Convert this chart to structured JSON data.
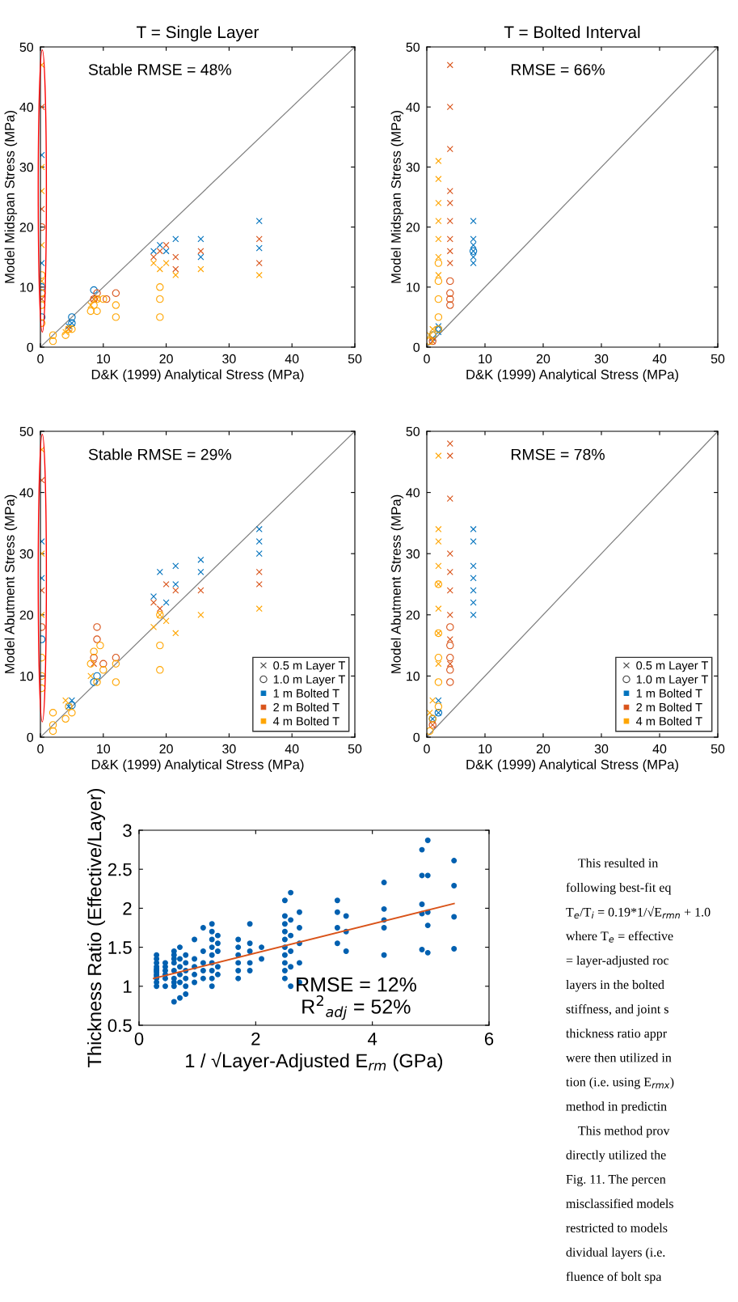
{
  "chart_data": [
    {
      "type": "scatter",
      "title": "T = Single Layer",
      "xlabel": "D&K (1999) Analytical Stress (MPa)",
      "ylabel": "Model Midspan Stress (MPa)",
      "xlim": [
        0,
        50
      ],
      "ylim": [
        0,
        50
      ],
      "xticks": [
        0,
        10,
        20,
        30,
        40,
        50
      ],
      "yticks": [
        0,
        10,
        20,
        30,
        40,
        50
      ],
      "legend": false,
      "annotations": [
        "Stable RMSE = 48%"
      ],
      "series": [
        {
          "type": "line",
          "color": "#808080",
          "x": [
            0,
            50
          ],
          "values": [
            0,
            50
          ]
        },
        {
          "marker": "cross",
          "color": "#0072bd",
          "x": [
            0.2,
            0.2,
            4.5,
            5,
            18,
            19,
            20,
            21.5,
            25.5,
            25.5,
            34.8,
            34.8
          ],
          "values": [
            14,
            32,
            3.5,
            4,
            16,
            17,
            16,
            18,
            18,
            15,
            21,
            16.5
          ]
        },
        {
          "marker": "cross",
          "color": "#d95319",
          "x": [
            0.2,
            0.2,
            0.2,
            4.5,
            8.5,
            18,
            19,
            20,
            21.5,
            21.5,
            25.5,
            34.8,
            34.8
          ],
          "values": [
            40,
            23,
            8,
            3,
            8,
            15,
            16,
            17,
            13,
            15,
            16,
            14,
            18
          ]
        },
        {
          "marker": "cross",
          "color": "#ffa500",
          "x": [
            0.2,
            0.2,
            0.2,
            0.2,
            0.2,
            4,
            8,
            9,
            18,
            19,
            20,
            21.5,
            25.5,
            34.8
          ],
          "values": [
            47,
            30,
            26,
            17,
            11,
            2.5,
            7,
            8,
            14,
            13,
            14,
            12,
            13,
            12
          ]
        },
        {
          "marker": "circle",
          "color": "#0072bd",
          "x": [
            0.2,
            0.2,
            5,
            5,
            8.5
          ],
          "values": [
            10,
            5,
            4,
            5,
            9.5
          ]
        },
        {
          "marker": "circle",
          "color": "#d95319",
          "x": [
            0.2,
            0.2,
            8.5,
            9,
            10.5,
            12
          ],
          "values": [
            20,
            9,
            8,
            9,
            8,
            9
          ]
        },
        {
          "marker": "circle",
          "color": "#ffa500",
          "x": [
            0.2,
            0.2,
            0.2,
            0.2,
            2,
            2,
            4,
            4.5,
            5,
            8,
            8.5,
            9,
            9,
            10,
            12,
            12,
            19,
            19,
            19
          ],
          "values": [
            12,
            9,
            7,
            4,
            1,
            2,
            2,
            3,
            3,
            6,
            7,
            8,
            6,
            8,
            5,
            7,
            5,
            8,
            10
          ]
        }
      ]
    },
    {
      "type": "scatter",
      "title": "T = Bolted Interval",
      "xlabel": "D&K (1999) Analytical Stress (MPa)",
      "ylabel": "Model Midspan Stress (MPa)",
      "xlim": [
        0,
        50
      ],
      "ylim": [
        0,
        50
      ],
      "xticks": [
        0,
        10,
        20,
        30,
        40,
        50
      ],
      "yticks": [
        0,
        10,
        20,
        30,
        40,
        50
      ],
      "legend": false,
      "annotations": [
        "RMSE = 66%"
      ],
      "series": [
        {
          "type": "line",
          "color": "#808080",
          "x": [
            0,
            50
          ],
          "values": [
            0,
            50
          ]
        },
        {
          "marker": "cross",
          "color": "#0072bd",
          "x": [
            1,
            2,
            2,
            8,
            8,
            8,
            8,
            8,
            8
          ],
          "values": [
            1.5,
            2.5,
            3.5,
            14,
            15,
            16,
            17,
            18,
            21
          ]
        },
        {
          "marker": "cross",
          "color": "#d95319",
          "x": [
            1,
            4,
            4,
            4,
            4,
            4,
            4,
            4,
            4,
            4
          ],
          "values": [
            1,
            14,
            16,
            18,
            21,
            24,
            26,
            33,
            40,
            47
          ]
        },
        {
          "marker": "cross",
          "color": "#ffa500",
          "x": [
            0.5,
            1,
            2,
            2,
            2,
            2,
            2,
            2,
            2
          ],
          "values": [
            2,
            3,
            12,
            15,
            18,
            21,
            24,
            28,
            31
          ]
        },
        {
          "marker": "circle",
          "color": "#0072bd",
          "x": [
            1,
            2,
            8
          ],
          "values": [
            2,
            3,
            16
          ]
        },
        {
          "marker": "circle",
          "color": "#d95319",
          "x": [
            1,
            4,
            4,
            4,
            4
          ],
          "values": [
            1,
            7,
            8,
            9,
            11
          ]
        },
        {
          "marker": "circle",
          "color": "#ffa500",
          "x": [
            0.5,
            1,
            2,
            2,
            2,
            2,
            2
          ],
          "values": [
            1,
            2,
            3,
            5,
            8,
            11,
            14
          ]
        }
      ]
    },
    {
      "type": "scatter",
      "xlabel": "D&K (1999) Analytical Stress (MPa)",
      "ylabel": "Model Abutment Stress (MPa)",
      "xlim": [
        0,
        50
      ],
      "ylim": [
        0,
        50
      ],
      "xticks": [
        0,
        10,
        20,
        30,
        40,
        50
      ],
      "yticks": [
        0,
        10,
        20,
        30,
        40,
        50
      ],
      "legend": "lower right",
      "annotations": [
        "Stable RMSE = 29%"
      ],
      "series": [
        {
          "type": "line",
          "color": "#808080",
          "x": [
            0,
            50
          ],
          "values": [
            0,
            50
          ]
        },
        {
          "marker": "cross",
          "color": "#0072bd",
          "x": [
            0.2,
            0.2,
            4.5,
            5,
            18,
            19,
            20,
            21.5,
            21.5,
            25.5,
            25.5,
            34.8,
            34.8,
            34.8
          ],
          "values": [
            32,
            26,
            5,
            6,
            23,
            27,
            22,
            28,
            25,
            29,
            27,
            34,
            32,
            30
          ]
        },
        {
          "marker": "cross",
          "color": "#d95319",
          "x": [
            0.2,
            0.2,
            8.5,
            18,
            19,
            20,
            21.5,
            25.5,
            34.8,
            34.8
          ],
          "values": [
            42,
            24,
            12,
            22,
            21,
            25,
            24,
            24,
            27,
            25
          ]
        },
        {
          "marker": "cross",
          "color": "#ffa500",
          "x": [
            0.2,
            0.2,
            0.2,
            4,
            8,
            18,
            19,
            20,
            21.5,
            25.5,
            34.8
          ],
          "values": [
            47,
            30,
            20,
            6,
            10,
            18,
            20,
            19,
            17,
            20,
            21
          ]
        },
        {
          "marker": "circle",
          "color": "#0072bd",
          "x": [
            0.2,
            5,
            8.5,
            9
          ],
          "values": [
            16,
            5.2,
            9,
            10
          ]
        },
        {
          "marker": "circle",
          "color": "#d95319",
          "x": [
            0.2,
            8.5,
            9,
            9,
            10,
            12
          ],
          "values": [
            18,
            13,
            16,
            18,
            12,
            13
          ]
        },
        {
          "marker": "circle",
          "color": "#ffa500",
          "x": [
            0.2,
            0.2,
            0.2,
            2,
            2,
            2,
            4,
            4.5,
            5,
            8,
            8.5,
            9,
            9.5,
            10,
            12,
            12,
            19,
            19,
            19
          ],
          "values": [
            13,
            10,
            8,
            1,
            2,
            4,
            3,
            5,
            4,
            12,
            14,
            9,
            15,
            11,
            9,
            12,
            11,
            15,
            20
          ]
        },
        {
          "name": "0.5 m Layer T",
          "marker": "cross",
          "color": "#404040"
        },
        {
          "name": "1.0 m Layer T",
          "marker": "circle",
          "color": "#404040"
        },
        {
          "name": "1 m Bolted T",
          "marker": "square",
          "color": "#0072bd"
        },
        {
          "name": "2 m Bolted T",
          "marker": "square",
          "color": "#d95319"
        },
        {
          "name": "4 m Bolted T",
          "marker": "square",
          "color": "#ffa500"
        }
      ]
    },
    {
      "type": "scatter",
      "xlabel": "D&K (1999) Analytical Stress (MPa)",
      "ylabel": "Model Abutment Stress (MPa)",
      "xlim": [
        0,
        50
      ],
      "ylim": [
        0,
        50
      ],
      "xticks": [
        0,
        10,
        20,
        30,
        40,
        50
      ],
      "yticks": [
        0,
        10,
        20,
        30,
        40,
        50
      ],
      "legend": "lower right",
      "annotations": [
        "RMSE = 78%"
      ],
      "series": [
        {
          "type": "line",
          "color": "#808080",
          "x": [
            0,
            50
          ],
          "values": [
            0,
            50
          ]
        },
        {
          "marker": "cross",
          "color": "#0072bd",
          "x": [
            1,
            2,
            2,
            8,
            8,
            8,
            8,
            8,
            8,
            8
          ],
          "values": [
            3,
            4,
            6,
            20,
            22,
            24,
            26,
            28,
            32,
            34
          ]
        },
        {
          "marker": "cross",
          "color": "#d95319",
          "x": [
            1,
            4,
            4,
            4,
            4,
            4,
            4,
            4,
            4,
            4
          ],
          "values": [
            2,
            12,
            16,
            20,
            24,
            27,
            30,
            39,
            46,
            48
          ]
        },
        {
          "marker": "cross",
          "color": "#ffa500",
          "x": [
            0.5,
            1,
            2,
            2,
            2,
            2,
            2,
            2,
            2,
            2
          ],
          "values": [
            4,
            6,
            12,
            17,
            21,
            25,
            28,
            32,
            34,
            46
          ]
        },
        {
          "marker": "circle",
          "color": "#0072bd",
          "x": [
            1,
            2
          ],
          "values": [
            3,
            4
          ]
        },
        {
          "marker": "circle",
          "color": "#d95319",
          "x": [
            1,
            4,
            4,
            4,
            4,
            4
          ],
          "values": [
            2,
            9,
            11,
            13,
            15,
            18
          ]
        },
        {
          "marker": "circle",
          "color": "#ffa500",
          "x": [
            0.5,
            1,
            2,
            2,
            2,
            2,
            2
          ],
          "values": [
            1,
            3,
            5,
            9,
            13,
            17,
            25
          ]
        },
        {
          "name": "0.5 m Layer T",
          "marker": "cross",
          "color": "#404040"
        },
        {
          "name": "1.0 m Layer T",
          "marker": "circle",
          "color": "#404040"
        },
        {
          "name": "1 m Bolted T",
          "marker": "square",
          "color": "#0072bd"
        },
        {
          "name": "2 m Bolted T",
          "marker": "square",
          "color": "#d95319"
        },
        {
          "name": "4 m Bolted T",
          "marker": "square",
          "color": "#ffa500"
        }
      ]
    },
    {
      "type": "scatter",
      "xlabel": "1 / √Layer-Adjusted E$_{rm}$ (GPa)",
      "ylabel": "Thickness Ratio (Effective/Layer)",
      "xlim": [
        0,
        6
      ],
      "ylim": [
        0.5,
        3
      ],
      "xticks": [
        0,
        2,
        4,
        6
      ],
      "yticks": [
        0.5,
        1,
        1.5,
        2,
        2.5,
        3
      ],
      "legend": false,
      "annotations": [
        "RMSE = 12%",
        "R$^{2}$$_{adj}$ = 52%"
      ],
      "series": [
        {
          "marker": "dot",
          "color": "#0060b0",
          "x": [
            0.3,
            0.3,
            0.3,
            0.3,
            0.3,
            0.3,
            0.3,
            0.3,
            0.3,
            0.3,
            0.3,
            0.3,
            0.45,
            0.45,
            0.45,
            0.45,
            0.45,
            0.45,
            0.6,
            0.6,
            0.6,
            0.6,
            0.6,
            0.6,
            0.6,
            0.6,
            0.6,
            0.7,
            0.7,
            0.7,
            0.7,
            0.7,
            0.7,
            0.8,
            0.8,
            0.8,
            0.8,
            0.8,
            0.8,
            0.95,
            0.95,
            0.95,
            0.95,
            0.95,
            1.1,
            1.1,
            1.1,
            1.1,
            1.1,
            1.25,
            1.25,
            1.25,
            1.25,
            1.25,
            1.25,
            1.25,
            1.25,
            1.25,
            1.35,
            1.35,
            1.35,
            1.35,
            1.35,
            1.7,
            1.7,
            1.7,
            1.7,
            1.7,
            1.7,
            1.9,
            1.9,
            1.9,
            1.9,
            1.9,
            2.1,
            2.1,
            2.5,
            2.5,
            2.5,
            2.5,
            2.5,
            2.5,
            2.5,
            2.5,
            2.5,
            2.5,
            2.6,
            2.6,
            2.6,
            2.6,
            2.6,
            2.6,
            2.75,
            2.75,
            2.75,
            2.75,
            2.75,
            3.4,
            3.4,
            3.4,
            3.4,
            3.55,
            3.55,
            3.55,
            4.2,
            4.2,
            4.2,
            4.2,
            4.2,
            4.85,
            4.85,
            4.85,
            4.85,
            4.85,
            4.95,
            4.95,
            4.95,
            4.95,
            4.95,
            5.4,
            5.4,
            5.4,
            5.4
          ],
          "values": [
            1.0,
            1.05,
            1.1,
            1.15,
            1.2,
            1.25,
            1.3,
            1.35,
            1.4,
            1.13,
            1.18,
            1.22,
            1.0,
            1.1,
            1.2,
            1.3,
            1.25,
            1.15,
            0.8,
            1.0,
            1.1,
            1.2,
            1.3,
            1.4,
            1.45,
            1.05,
            1.35,
            0.85,
            1.05,
            1.15,
            1.25,
            1.35,
            1.5,
            0.9,
            1.0,
            1.1,
            1.2,
            1.3,
            1.4,
            1.05,
            1.15,
            1.25,
            1.35,
            1.6,
            1.1,
            1.2,
            1.3,
            1.45,
            1.75,
            1.0,
            1.1,
            1.2,
            1.3,
            1.4,
            1.5,
            1.6,
            1.7,
            1.8,
            1.15,
            1.25,
            1.45,
            1.55,
            1.65,
            1.1,
            1.2,
            1.3,
            1.4,
            1.5,
            1.6,
            1.2,
            1.3,
            1.45,
            1.55,
            1.8,
            1.35,
            1.5,
            1.1,
            1.2,
            1.3,
            1.4,
            1.5,
            1.6,
            1.7,
            1.8,
            1.9,
            2.1,
            1.0,
            1.25,
            1.45,
            1.65,
            1.85,
            2.2,
            1.05,
            1.3,
            1.55,
            1.75,
            1.95,
            1.55,
            1.75,
            1.95,
            2.1,
            1.45,
            1.7,
            1.9,
            1.4,
            1.75,
            1.85,
            1.99,
            2.33,
            1.47,
            1.93,
            2.05,
            2.42,
            2.75,
            1.43,
            1.78,
            1.95,
            2.42,
            2.87,
            1.48,
            1.89,
            2.29,
            2.61
          ]
        },
        {
          "type": "line",
          "color": "#d95319",
          "x": [
            0.25,
            5.4
          ],
          "values": [
            1.1,
            2.06
          ]
        }
      ]
    },
    {
      "type": "other",
      "annotations": [
        "This resulted in",
        "following best-fit eq",
        "T$_{e}$/T$_{i}$ = 0.19*1/√E$_{rmn}$ + 1.0",
        "where T$_{e}$ = effective",
        "= layer-adjusted roc",
        "layers in the bolted",
        "stiffness, and joint s",
        "thickness ratio appr",
        "were then utilized in",
        "tion (i.e. using E$_{rmx}$)",
        "method in predictin",
        "This method prov",
        "directly utilized the",
        "Fig. 11. The percen",
        "misclassified models",
        "restricted to models",
        "dividual layers (i.e.",
        "fluence of bolt spa"
      ]
    }
  ]
}
